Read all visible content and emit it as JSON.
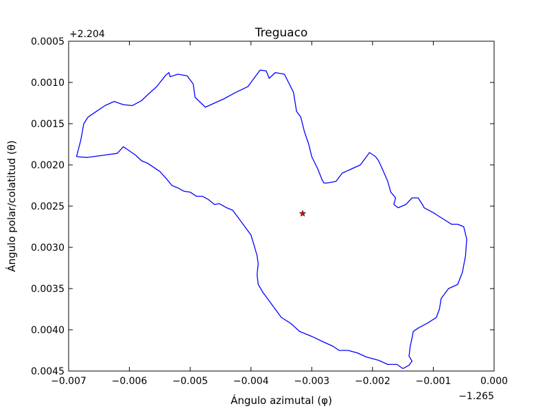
{
  "chart_data": {
    "type": "line",
    "title": "Treguaco",
    "xlabel": "Ángulo azimutal (φ)",
    "ylabel": "Ángulo polar/colatitud (θ)",
    "x_offset_label": "−1.265",
    "y_offset_label": "+2.204",
    "xlim": [
      -0.007,
      0.0
    ],
    "ylim": [
      0.0045,
      0.0005
    ],
    "y_inverted": true,
    "grid": false,
    "x_ticks": [
      -0.007,
      -0.006,
      -0.005,
      -0.004,
      -0.003,
      -0.002,
      -0.001,
      0.0
    ],
    "x_tick_labels": [
      "−0.007",
      "−0.006",
      "−0.005",
      "−0.004",
      "−0.003",
      "−0.002",
      "−0.001",
      "0.000"
    ],
    "y_ticks": [
      0.0005,
      0.001,
      0.0015,
      0.002,
      0.0025,
      0.003,
      0.0035,
      0.004,
      0.0045
    ],
    "y_tick_labels": [
      "0.0005",
      "0.0010",
      "0.0015",
      "0.0020",
      "0.0025",
      "0.0030",
      "0.0035",
      "0.0040",
      "0.0045"
    ],
    "series": [
      {
        "color": "#0000ff",
        "x": [
          -0.00687,
          -0.0068,
          -0.00675,
          -0.00668,
          -0.0066,
          -0.0065,
          -0.0064,
          -0.00625,
          -0.0061,
          -0.00595,
          -0.0058,
          -0.0057,
          -0.00555,
          -0.0054,
          -0.00535,
          -0.00533,
          -0.0052,
          -0.00505,
          -0.00495,
          -0.00492,
          -0.00475,
          -0.0046,
          -0.00445,
          -0.00425,
          -0.00405,
          -0.00395,
          -0.00388,
          -0.00385,
          -0.00375,
          -0.0037,
          -0.0036,
          -0.00345,
          -0.0033,
          -0.00325,
          -0.00318,
          -0.00312,
          -0.00305,
          -0.003,
          -0.0029,
          -0.00283,
          -0.0028,
          -0.00275,
          -0.0026,
          -0.0025,
          -0.00235,
          -0.0022,
          -0.0021,
          -0.00205,
          -0.00195,
          -0.0019,
          -0.00182,
          -0.00175,
          -0.0017,
          -0.00162,
          -0.00165,
          -0.00158,
          -0.00145,
          -0.00135,
          -0.00125,
          -0.00118,
          -0.00115,
          -0.001,
          -0.00085,
          -0.0007,
          -0.0006,
          -0.0005,
          -0.00045,
          -0.00047,
          -0.00052,
          -0.0006,
          -0.00075,
          -0.00087,
          -0.0009,
          -0.00095,
          -0.0011,
          -0.00125,
          -0.00133,
          -0.00135,
          -0.00138,
          -0.0014,
          -0.00135,
          -0.0014,
          -0.0015,
          -0.0016,
          -0.00175,
          -0.0019,
          -0.0021,
          -0.00225,
          -0.0024,
          -0.00255,
          -0.00265,
          -0.0028,
          -0.003,
          -0.0032,
          -0.00335,
          -0.0035,
          -0.0036,
          -0.0037,
          -0.0038,
          -0.00388,
          -0.0039,
          -0.00388,
          -0.0039,
          -0.00395,
          -0.004,
          -0.0041,
          -0.0042,
          -0.0043,
          -0.0044,
          -0.00452,
          -0.0046,
          -0.0047,
          -0.0048,
          -0.0049,
          -0.005,
          -0.0051,
          -0.0052,
          -0.0053,
          -0.0054,
          -0.0055,
          -0.0056,
          -0.0057,
          -0.0058,
          -0.0059,
          -0.006,
          -0.0061,
          -0.0062,
          -0.0064,
          -0.0066,
          -0.0067,
          -0.00687
        ],
        "y": [
          0.0019,
          0.0017,
          0.0015,
          0.00142,
          0.00138,
          0.00133,
          0.00128,
          0.00123,
          0.00127,
          0.00128,
          0.00122,
          0.00115,
          0.00105,
          0.00091,
          0.00088,
          0.00093,
          0.0009,
          0.00092,
          0.00102,
          0.00118,
          0.0013,
          0.00125,
          0.0012,
          0.00112,
          0.00105,
          0.00095,
          0.00088,
          0.00085,
          0.00086,
          0.00095,
          0.00088,
          0.0009,
          0.00112,
          0.00135,
          0.00142,
          0.0016,
          0.00175,
          0.0019,
          0.00205,
          0.00218,
          0.00222,
          0.00222,
          0.0022,
          0.0021,
          0.00205,
          0.002,
          0.0019,
          0.00185,
          0.0019,
          0.00195,
          0.00208,
          0.0022,
          0.00233,
          0.0024,
          0.00248,
          0.00252,
          0.00248,
          0.0024,
          0.0024,
          0.00248,
          0.00252,
          0.00258,
          0.00265,
          0.00272,
          0.00272,
          0.00275,
          0.0029,
          0.0031,
          0.0033,
          0.00345,
          0.0035,
          0.00362,
          0.00375,
          0.00385,
          0.00392,
          0.00398,
          0.00402,
          0.0041,
          0.0042,
          0.00432,
          0.00438,
          0.00443,
          0.00447,
          0.00442,
          0.00442,
          0.00437,
          0.00433,
          0.00428,
          0.00425,
          0.00425,
          0.0042,
          0.00415,
          0.00408,
          0.00402,
          0.00392,
          0.00385,
          0.00375,
          0.00365,
          0.00355,
          0.00345,
          0.00333,
          0.0032,
          0.0031,
          0.00297,
          0.00285,
          0.00275,
          0.00265,
          0.00255,
          0.00252,
          0.00247,
          0.00248,
          0.00242,
          0.00238,
          0.00238,
          0.00233,
          0.00232,
          0.00228,
          0.00225,
          0.00216,
          0.00208,
          0.00203,
          0.00198,
          0.00195,
          0.00188,
          0.00183,
          0.00178,
          0.00186,
          0.00188,
          0.0019,
          0.00191,
          0.0019
        ]
      }
    ],
    "marker": {
      "x": -0.00315,
      "y": 0.00259,
      "shape": "star",
      "color": "#ff0000"
    }
  }
}
